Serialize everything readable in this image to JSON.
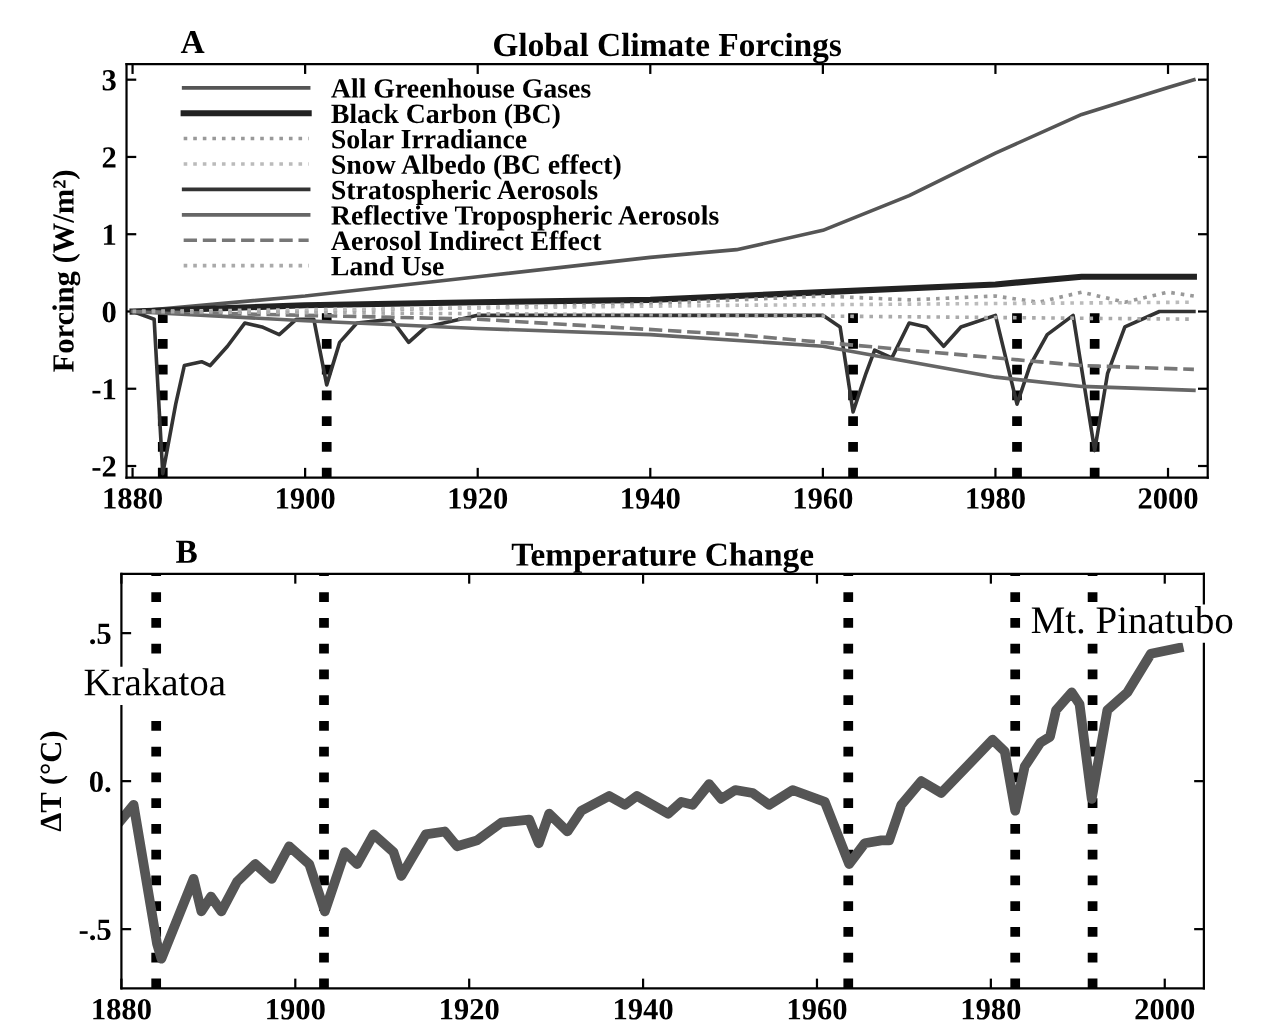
{
  "chart_data": [
    {
      "type": "line",
      "title": "Global Climate Forcings",
      "ylabel": "Forcing (W/m²)",
      "annotations": [
        "A"
      ],
      "xlim": [
        1879.3,
        2004.6
      ],
      "ylim": [
        -2.15,
        3.2
      ],
      "xticks": [
        1880,
        1900,
        1920,
        1940,
        1960,
        1980,
        2000
      ],
      "yticks": [
        -2,
        -1,
        0,
        1,
        2,
        3
      ],
      "legend": "top left",
      "grid": false,
      "marker": "none",
      "ref_lines": [
        {
          "axis": "x",
          "value": 1883.5,
          "color": "#000000",
          "line_style": "dotted"
        },
        {
          "axis": "x",
          "value": 1902.5,
          "color": "#000000",
          "line_style": "dotted"
        },
        {
          "axis": "x",
          "value": 1963.5,
          "color": "#000000",
          "line_style": "dotted"
        },
        {
          "axis": "x",
          "value": 1982.5,
          "color": "#000000",
          "line_style": "dotted"
        },
        {
          "axis": "x",
          "value": 1991.5,
          "color": "#000000",
          "line_style": "dotted"
        }
      ],
      "series": [
        {
          "name": "All Greenhouse Gases",
          "color": "#555555",
          "line_style": "solid",
          "x": [
            1880,
            1900,
            1920,
            1940,
            1950,
            1960,
            1970,
            1980,
            1990,
            2000,
            2003
          ],
          "values": [
            0,
            0.2,
            0.45,
            0.7,
            0.8,
            1.05,
            1.5,
            2.05,
            2.55,
            2.9,
            3.0
          ]
        },
        {
          "name": "Black Carbon (BC)",
          "color": "#222222",
          "line_style": "solid",
          "x": [
            1880,
            1900,
            1920,
            1940,
            1960,
            1980,
            1990,
            2003
          ],
          "values": [
            0,
            0.08,
            0.12,
            0.15,
            0.25,
            0.35,
            0.45,
            0.45
          ]
        },
        {
          "name": "Solar Irradiance",
          "color": "#999999",
          "line_style": "dotted",
          "x": [
            1880,
            1900,
            1920,
            1940,
            1950,
            1960,
            1970,
            1980,
            1985,
            1990,
            1995,
            2000,
            2003
          ],
          "values": [
            0,
            0.0,
            0.05,
            0.1,
            0.15,
            0.2,
            0.15,
            0.2,
            0.12,
            0.25,
            0.12,
            0.25,
            0.2
          ]
        },
        {
          "name": "Snow Albedo (BC effect)",
          "color": "#bbbbbb",
          "line_style": "dotted",
          "x": [
            1880,
            1950,
            2003
          ],
          "values": [
            0,
            0.08,
            0.12
          ]
        },
        {
          "name": "Stratospheric Aerosols",
          "color": "#333333",
          "line_style": "solid",
          "x": [
            1880,
            1882.5,
            1883.5,
            1885,
            1886,
            1888,
            1889,
            1891,
            1893,
            1895,
            1897,
            1899,
            1901,
            1902.5,
            1904,
            1906,
            1910,
            1912,
            1914,
            1920,
            1930,
            1960,
            1962,
            1963.5,
            1965,
            1966,
            1968,
            1970,
            1972,
            1974,
            1976,
            1980,
            1982.5,
            1984,
            1986,
            1989,
            1991.5,
            1993,
            1995,
            1999,
            2003
          ],
          "values": [
            0,
            -0.1,
            -2.1,
            -1.2,
            -0.7,
            -0.65,
            -0.7,
            -0.45,
            -0.15,
            -0.2,
            -0.3,
            -0.1,
            -0.1,
            -0.95,
            -0.4,
            -0.15,
            -0.1,
            -0.4,
            -0.2,
            -0.05,
            -0.05,
            -0.05,
            -0.2,
            -1.3,
            -0.8,
            -0.5,
            -0.6,
            -0.15,
            -0.2,
            -0.45,
            -0.2,
            -0.05,
            -1.2,
            -0.7,
            -0.3,
            -0.05,
            -1.8,
            -0.8,
            -0.2,
            0.0,
            0.0
          ]
        },
        {
          "name": "Reflective Tropospheric Aerosols",
          "color": "#666666",
          "line_style": "solid",
          "x": [
            1880,
            1900,
            1920,
            1940,
            1960,
            1970,
            1980,
            1990,
            2003
          ],
          "values": [
            0,
            -0.12,
            -0.22,
            -0.3,
            -0.45,
            -0.65,
            -0.85,
            -0.97,
            -1.02
          ]
        },
        {
          "name": "Aerosol Indirect Effect",
          "color": "#777777",
          "line_style": "dashed",
          "x": [
            1880,
            1920,
            1950,
            1970,
            1990,
            2003
          ],
          "values": [
            0,
            -0.1,
            -0.3,
            -0.5,
            -0.7,
            -0.75
          ]
        },
        {
          "name": "Land Use",
          "color": "#aaaaaa",
          "line_style": "dotted",
          "x": [
            1880,
            1950,
            2003
          ],
          "values": [
            0,
            -0.05,
            -0.1
          ]
        }
      ]
    },
    {
      "type": "line",
      "title": "Temperature Change",
      "ylabel": "ΔT (°C)",
      "annotations": [
        "B",
        "Krakatoa",
        "Mt. Pinatubo"
      ],
      "xlim": [
        1880,
        2004.5
      ],
      "ylim": [
        -0.7,
        0.7
      ],
      "xticks": [
        1880,
        1900,
        1920,
        1940,
        1960,
        1980,
        2000
      ],
      "yticks": [
        {
          "value": -0.5,
          "label": "-.5"
        },
        {
          "value": 0,
          "label": "0."
        },
        {
          "value": 0.5,
          "label": ".5"
        }
      ],
      "legend": false,
      "grid": false,
      "marker": "none",
      "ref_lines": [
        {
          "axis": "x",
          "value": 1884,
          "color": "#000000",
          "line_style": "dotted"
        },
        {
          "axis": "x",
          "value": 1903.3,
          "color": "#000000",
          "line_style": "dotted"
        },
        {
          "axis": "x",
          "value": 1963.6,
          "color": "#000000",
          "line_style": "dotted"
        },
        {
          "axis": "x",
          "value": 1982.8,
          "color": "#000000",
          "line_style": "dotted"
        },
        {
          "axis": "x",
          "value": 1991.7,
          "color": "#000000",
          "line_style": "dotted"
        }
      ],
      "series": [
        {
          "color": "#555555",
          "line_style": "solid",
          "x": [
            1880,
            1881.4,
            1884.1,
            1884.6,
            1888.3,
            1889.2,
            1890.3,
            1891.5,
            1893.3,
            1895.4,
            1897.3,
            1899.3,
            1901.6,
            1903.4,
            1905.7,
            1907.1,
            1909.0,
            1911.3,
            1912.2,
            1913.6,
            1915.0,
            1917.2,
            1918.6,
            1920.9,
            1923.7,
            1926.9,
            1928.0,
            1929.2,
            1931.3,
            1932.9,
            1936.1,
            1937.9,
            1939.3,
            1942.9,
            1944.4,
            1945.7,
            1947.6,
            1949.0,
            1950.6,
            1952.6,
            1954.5,
            1957.2,
            1960.9,
            1963.7,
            1965.5,
            1967.4,
            1968.3,
            1969.7,
            1972.0,
            1974.3,
            1980.2,
            1981.6,
            1982.8,
            1983.9,
            1985.7,
            1986.8,
            1987.5,
            1989.3,
            1990.2,
            1991.6,
            1993.4,
            1995.7,
            1998.4,
            2001.6
          ],
          "values": [
            -0.13,
            -0.08,
            -0.55,
            -0.6,
            -0.33,
            -0.44,
            -0.39,
            -0.44,
            -0.34,
            -0.28,
            -0.33,
            -0.22,
            -0.28,
            -0.44,
            -0.24,
            -0.28,
            -0.18,
            -0.24,
            -0.32,
            -0.25,
            -0.18,
            -0.17,
            -0.22,
            -0.2,
            -0.14,
            -0.13,
            -0.21,
            -0.11,
            -0.17,
            -0.1,
            -0.05,
            -0.08,
            -0.05,
            -0.11,
            -0.07,
            -0.08,
            -0.01,
            -0.06,
            -0.03,
            -0.04,
            -0.08,
            -0.03,
            -0.07,
            -0.28,
            -0.21,
            -0.2,
            -0.2,
            -0.08,
            0.0,
            -0.04,
            0.14,
            0.1,
            -0.1,
            0.05,
            0.13,
            0.15,
            0.24,
            0.3,
            0.26,
            -0.06,
            0.24,
            0.3,
            0.43,
            0.45
          ]
        }
      ]
    }
  ]
}
